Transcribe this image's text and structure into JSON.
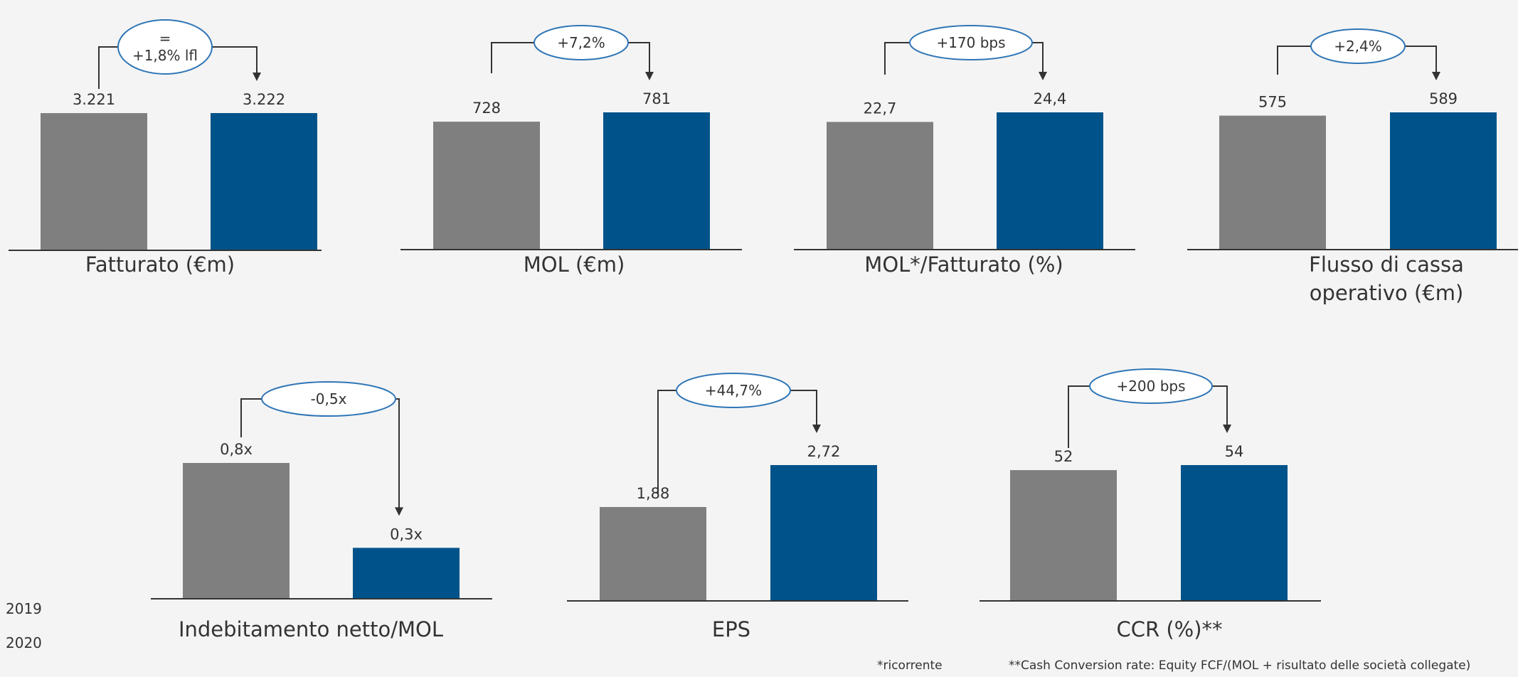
{
  "colors": {
    "year_2019": "#7f7f7f",
    "year_2020": "#00538a",
    "ellipse_stroke": "#2e75b6",
    "connector": "#333333",
    "baseline": "#333333",
    "label_text": "#333333"
  },
  "legend": [
    {
      "label": "2019",
      "color": "#7f7f7f"
    },
    {
      "label": "2020",
      "color": "#00538a"
    }
  ],
  "chart_data": [
    {
      "type": "bar",
      "title": "Fatturato (€m)",
      "categories": [
        "2019",
        "2020"
      ],
      "values": [
        3221,
        3222
      ],
      "value_labels": [
        "3.221",
        "3.222"
      ],
      "change_label": "=\n+1,8% lfl"
    },
    {
      "type": "bar",
      "title": "MOL (€m)",
      "categories": [
        "2019",
        "2020"
      ],
      "values": [
        728,
        781
      ],
      "value_labels": [
        "728",
        "781"
      ],
      "change_label": "+7,2%"
    },
    {
      "type": "bar",
      "title": "MOL*/Fatturato (%)",
      "categories": [
        "2019",
        "2020"
      ],
      "values": [
        22.7,
        24.4
      ],
      "value_labels": [
        "22,7",
        "24,4"
      ],
      "change_label": "+170 bps"
    },
    {
      "type": "bar",
      "title": "Flusso di cassa\noperativo (€m)",
      "categories": [
        "2019",
        "2020"
      ],
      "values": [
        575,
        589
      ],
      "value_labels": [
        "575",
        "589"
      ],
      "change_label": "+2,4%"
    },
    {
      "type": "bar",
      "title": "Indebitamento netto/MOL",
      "categories": [
        "2019",
        "2020"
      ],
      "values": [
        0.8,
        0.3
      ],
      "value_labels": [
        "0,8x",
        "0,3x"
      ],
      "change_label": "-0,5x"
    },
    {
      "type": "bar",
      "title": "EPS",
      "categories": [
        "2019",
        "2020"
      ],
      "values": [
        1.88,
        2.72
      ],
      "value_labels": [
        "1,88",
        "2,72"
      ],
      "change_label": "+44,7%"
    },
    {
      "type": "bar",
      "title": "CCR (%)**",
      "categories": [
        "2019",
        "2020"
      ],
      "values": [
        52,
        54
      ],
      "value_labels": [
        "52",
        "54"
      ],
      "change_label": "+200 bps"
    }
  ],
  "footnotes": {
    "recurring": "*ricorrente",
    "ccr": "**Cash Conversion rate: Equity FCF/(MOL + risultato delle società collegate)"
  }
}
